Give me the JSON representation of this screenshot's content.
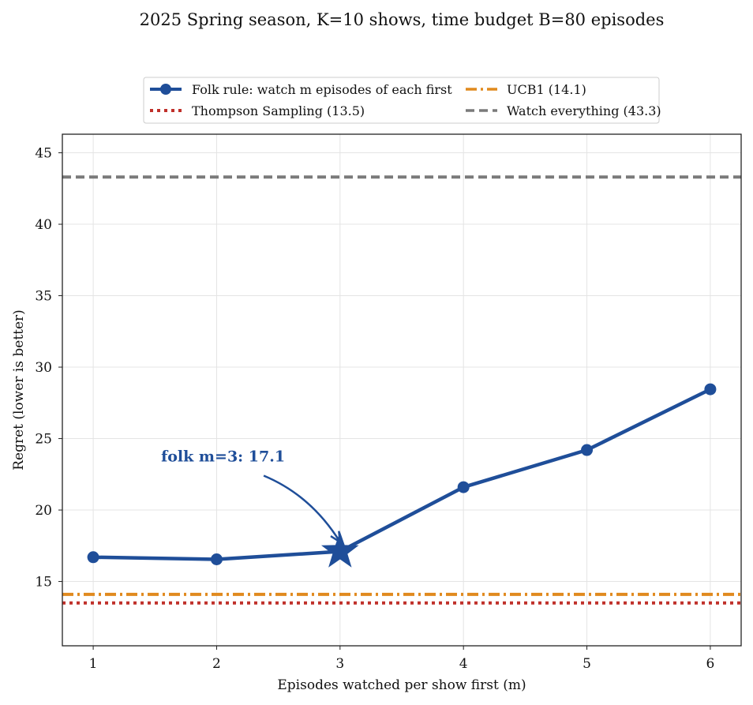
{
  "chart_data": {
    "type": "line",
    "title": "2025 Spring season, K=10 shows, time budget B=80 episodes",
    "xlabel": "Episodes watched per show first (m)",
    "ylabel": "Regret (lower is better)",
    "xlim": [
      0.75,
      6.25
    ],
    "ylim": [
      10.5,
      46.3
    ],
    "xticks": [
      1,
      2,
      3,
      4,
      5,
      6
    ],
    "yticks": [
      15,
      20,
      25,
      30,
      35,
      40,
      45
    ],
    "grid": true,
    "legend_position": "top-center, above plot",
    "series": [
      {
        "name": "Folk rule: watch m episodes of each first",
        "x": [
          1,
          2,
          3,
          4,
          5,
          6
        ],
        "y": [
          16.7,
          16.55,
          17.1,
          21.6,
          24.2,
          28.45
        ],
        "color": "#1f4e99",
        "style": "solid",
        "marker": "circle"
      }
    ],
    "reference_lines": [
      {
        "name": "UCB1 (14.1)",
        "y": 14.1,
        "color": "#e08a1e",
        "style": "dashdot"
      },
      {
        "name": "Thompson Sampling (13.5)",
        "y": 13.5,
        "color": "#c0302a",
        "style": "dotted"
      },
      {
        "name": "Watch everything (43.3)",
        "y": 43.3,
        "color": "#7a7a7a",
        "style": "dashed"
      }
    ],
    "highlight": {
      "x": 3,
      "y": 17.1,
      "marker": "star"
    },
    "annotation": {
      "text": "folk m=3: 17.1",
      "text_x": 1.55,
      "text_y": 23.4,
      "arrow_to_x": 3,
      "arrow_to_y": 17.1,
      "color": "#1f4e99"
    }
  }
}
